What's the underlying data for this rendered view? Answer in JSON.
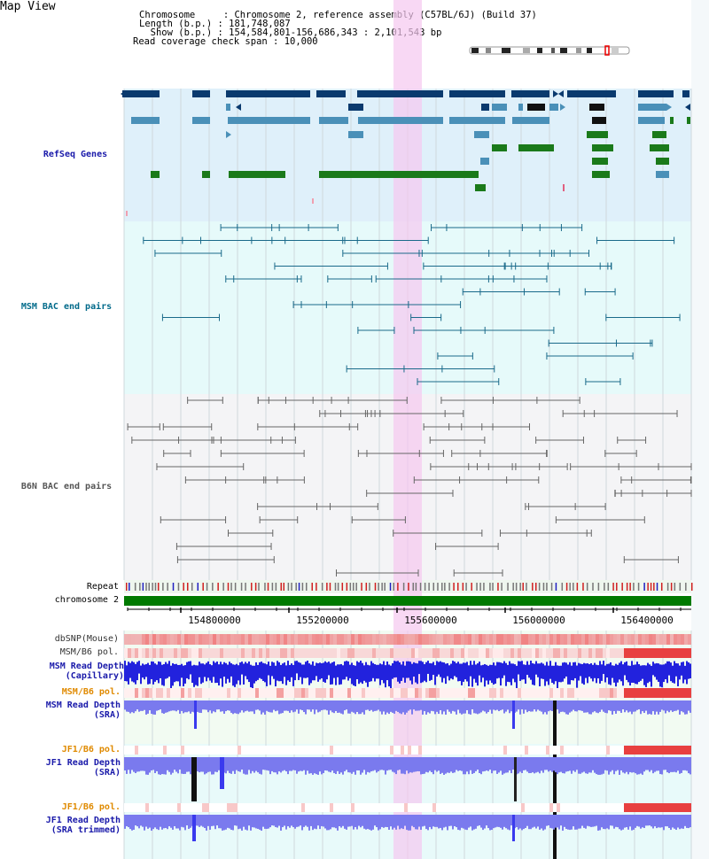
{
  "page": {
    "title": "Map View"
  },
  "header": {
    "chromosome_label": "Chromosome",
    "chromosome_value": "Chromosome 2, reference assembly (C57BL/6J) (Build 37)",
    "length_label": "Length (b.p.)",
    "length_value": "181,748,087",
    "show_label": "Show (b.p.)",
    "show_value": "154,584,801-156,686,343 : 2,101,543 bp",
    "read_label": "Read coverage check span",
    "read_value": "10,000"
  },
  "tracks": {
    "refseq": "RefSeq Genes",
    "msm_bac": "MSM BAC end pairs",
    "b6n_bac": "B6N BAC end pairs",
    "repeat": "Repeat",
    "chromosome": "chromosome 2",
    "dbsnp": "dbSNP(Mouse)",
    "msm_b6_pol_1": "MSM/B6 pol.",
    "msm_read_depth_cap_1": "MSM Read Depth",
    "msm_read_depth_cap_2": "(Capillary)",
    "msm_b6_pol_2": "MSM/B6 pol.",
    "msm_read_depth_sra_1": "MSM Read Depth",
    "msm_read_depth_sra_2": "(SRA)",
    "jf1_b6_pol_1": "JF1/B6 pol.",
    "jf1_read_depth_sra_1": "JF1 Read Depth",
    "jf1_read_depth_sra_2": "(SRA)",
    "jf1_b6_pol_2": "JF1/B6 pol.",
    "jf1_read_depth_trim_1": "JF1 Read Depth",
    "jf1_read_depth_trim_2": "(SRA trimmed)"
  },
  "axis": {
    "ticks": [
      "154800000",
      "155200000",
      "155600000",
      "156000000",
      "156400000"
    ]
  },
  "colors": {
    "refseq_bg": "#dff0fa",
    "msm_bg": "#e6fafa",
    "b6n_bg": "#f4f4f6",
    "highlight": "#f5c8f0",
    "gene_dark": "#0a3a6e",
    "gene_mid": "#4a90b8",
    "gene_green": "#1a7a1a",
    "msm_line": "#1a6a8a",
    "b6n_line": "#555555",
    "depth_blue": "#2222dd",
    "depth_light": "#7a7aee",
    "pol_red": "#e23a3a",
    "label_blue": "#1a1aaa",
    "label_orange": "#e08a00",
    "label_teal": "#006a8a"
  }
}
